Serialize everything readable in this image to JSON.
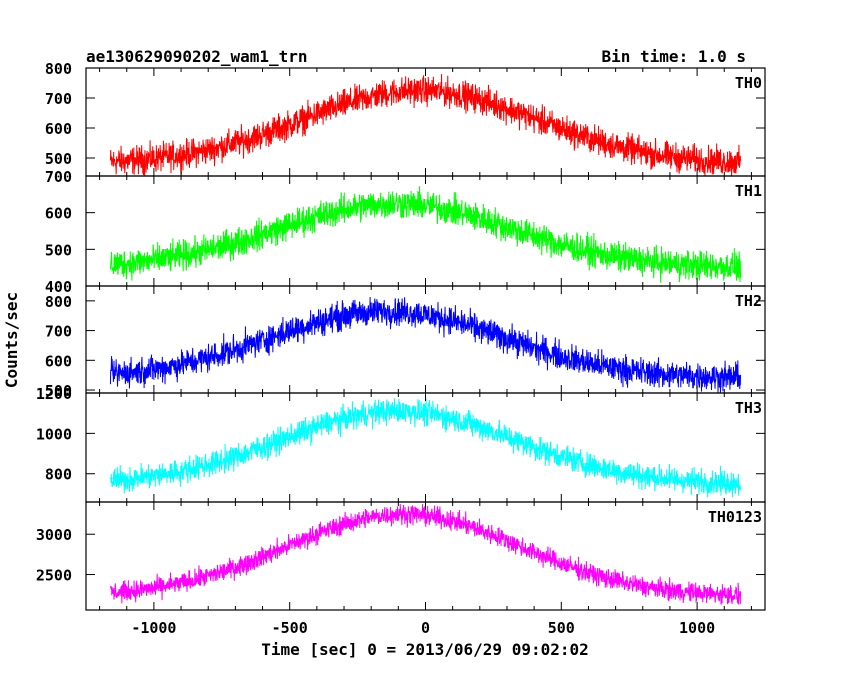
{
  "header": {
    "title": "ae130629090202_wam1_trn",
    "bin_time": "Bin time: 1.0 s"
  },
  "chart_data": {
    "type": "line",
    "xlabel": "Time [sec] 0 = 2013/06/29 09:02:02",
    "ylabel": "Counts/sec",
    "xlim": [
      -1250,
      1250
    ],
    "x_range": [
      -1160,
      1160
    ],
    "x_ticks": [
      -1000,
      -500,
      0,
      500,
      1000
    ],
    "panels": [
      {
        "name": "TH0",
        "color": "#ff0000",
        "ylim": [
          440,
          800
        ],
        "y_ticks": [
          500,
          600,
          700,
          800
        ],
        "baseline": 480,
        "peak": 725,
        "peak_x": -20,
        "noise": 42
      },
      {
        "name": "TH1",
        "color": "#00ff00",
        "ylim": [
          400,
          700
        ],
        "y_ticks": [
          400,
          500,
          600,
          700
        ],
        "baseline": 450,
        "peak": 625,
        "peak_x": -110,
        "noise": 36
      },
      {
        "name": "TH2",
        "color": "#0000ff",
        "ylim": [
          490,
          850
        ],
        "y_ticks": [
          500,
          600,
          700,
          800
        ],
        "baseline": 540,
        "peak": 765,
        "peak_x": -140,
        "noise": 42
      },
      {
        "name": "TH3",
        "color": "#00ffff",
        "ylim": [
          660,
          1200
        ],
        "y_ticks": [
          800,
          1000,
          1200
        ],
        "baseline": 750,
        "peak": 1110,
        "peak_x": -100,
        "noise": 55
      },
      {
        "name": "TH0123",
        "color": "#ff00ff",
        "ylim": [
          2060,
          3400
        ],
        "y_ticks": [
          2500,
          3000
        ],
        "baseline": 2230,
        "peak": 3250,
        "peak_x": -80,
        "noise": 110
      }
    ]
  }
}
